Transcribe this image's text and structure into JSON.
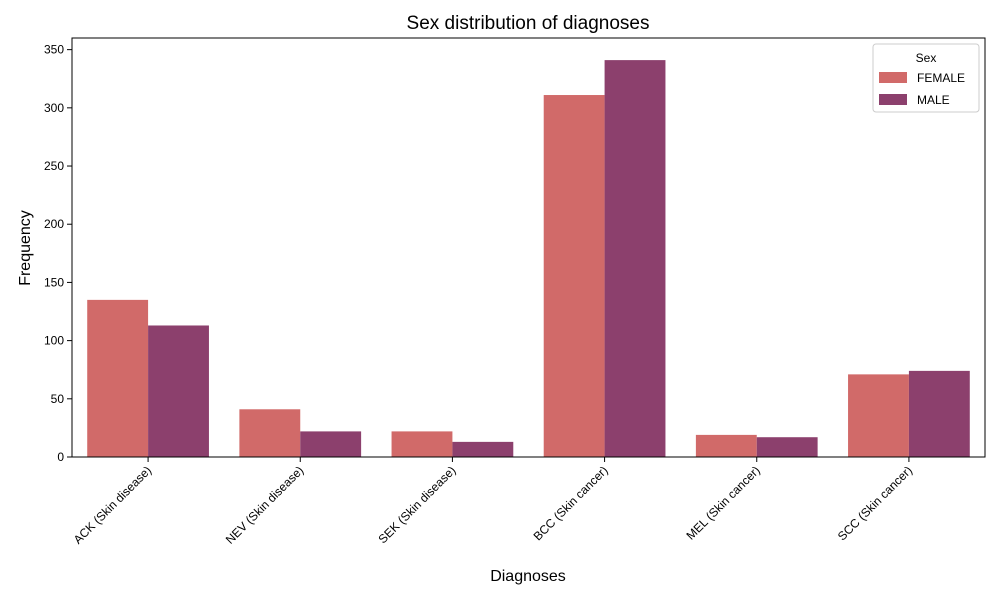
{
  "chart_data": {
    "type": "bar",
    "title": "Sex distribution of diagnoses",
    "xlabel": "Diagnoses",
    "ylabel": "Frequency",
    "categories": [
      "ACK (Skin disease)",
      "NEV (Skin disease)",
      "SEK (Skin disease)",
      "BCC (Skin cancer)",
      "MEL (Skin cancer)",
      "SCC (Skin cancer)"
    ],
    "series": [
      {
        "name": "FEMALE",
        "color": "#d16a69",
        "values": [
          135,
          41,
          22,
          311,
          19,
          71
        ]
      },
      {
        "name": "MALE",
        "color": "#8c406d",
        "values": [
          113,
          22,
          13,
          341,
          17,
          74
        ]
      }
    ],
    "ylim": [
      0,
      360
    ],
    "yticks": [
      0,
      50,
      100,
      150,
      200,
      250,
      300,
      350
    ],
    "grid": false,
    "legend": {
      "title": "Sex",
      "placement": "top-right"
    }
  }
}
